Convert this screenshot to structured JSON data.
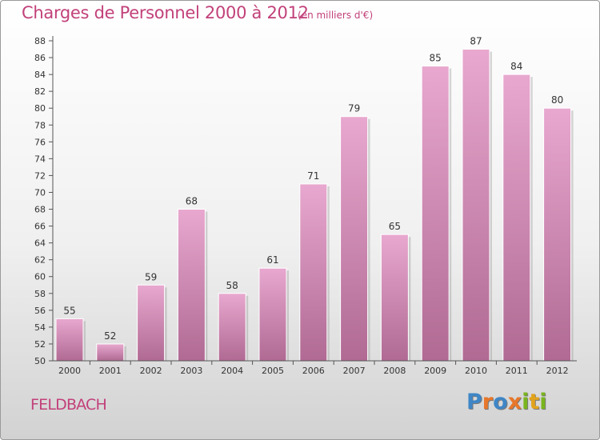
{
  "header": {
    "title": "Charges de Personnel 2000 à 2012",
    "subtitle": "(en milliers d'€)"
  },
  "footer": {
    "commune": "FELDBACH",
    "logo_text": "Proxiti",
    "logo_colors": [
      "#3f86c6",
      "#e8772a",
      "#3f86c6",
      "#e8772a",
      "#7ab51d",
      "#e2a31b",
      "#7ab51d"
    ]
  },
  "colors": {
    "title": "#c2417a",
    "bar_light": "#e8a8cf",
    "bar_dark": "#b06a93",
    "axis": "#555555"
  },
  "chart_data": {
    "type": "bar",
    "categories": [
      "2000",
      "2001",
      "2002",
      "2003",
      "2004",
      "2005",
      "2006",
      "2007",
      "2008",
      "2009",
      "2010",
      "2011",
      "2012"
    ],
    "values": [
      55,
      52,
      59,
      68,
      58,
      61,
      71,
      79,
      65,
      85,
      87,
      84,
      80
    ],
    "ylim": [
      50,
      88
    ],
    "ytick_step": 2,
    "grid": false,
    "legend": "none"
  }
}
